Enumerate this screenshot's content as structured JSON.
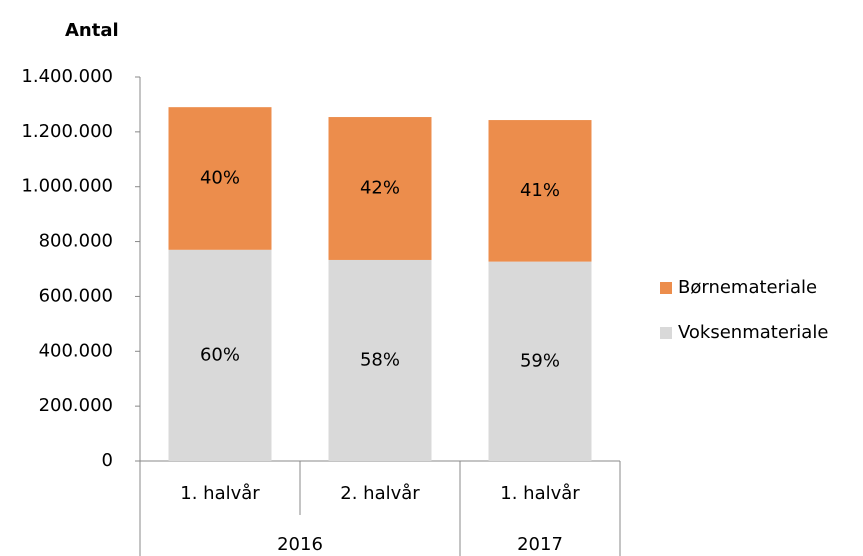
{
  "chart_data": {
    "type": "stacked_bar",
    "title": "Antal",
    "categories": [
      "1. halvår",
      "2. halvår",
      "1. halvår"
    ],
    "category_groups": [
      {
        "label": "2016",
        "count": 2
      },
      {
        "label": "2017",
        "count": 1
      }
    ],
    "series": [
      {
        "name": "Voksenmateriale",
        "color": "#d9d9d9",
        "values": [
          770000,
          733000,
          727000
        ],
        "percent_labels": [
          "60%",
          "58%",
          "59%"
        ]
      },
      {
        "name": "Børnemateriale",
        "color": "#ec8d4c",
        "values": [
          520000,
          521000,
          516000
        ],
        "percent_labels": [
          "40%",
          "42%",
          "41%"
        ]
      }
    ],
    "ylim": [
      0,
      1400000
    ],
    "yticks": [
      0,
      {
        "value": 200000,
        "label": "200.000"
      },
      {
        "value": 400000,
        "label": "400.000"
      },
      {
        "value": 600000,
        "label": "600.000"
      },
      {
        "value": 800000,
        "label": "800.000"
      },
      {
        "value": 1000000,
        "label": "1.000.000"
      },
      {
        "value": 1200000,
        "label": "1.200.000"
      },
      {
        "value": 1400000,
        "label": "1.400.000"
      }
    ],
    "legend": "right"
  }
}
